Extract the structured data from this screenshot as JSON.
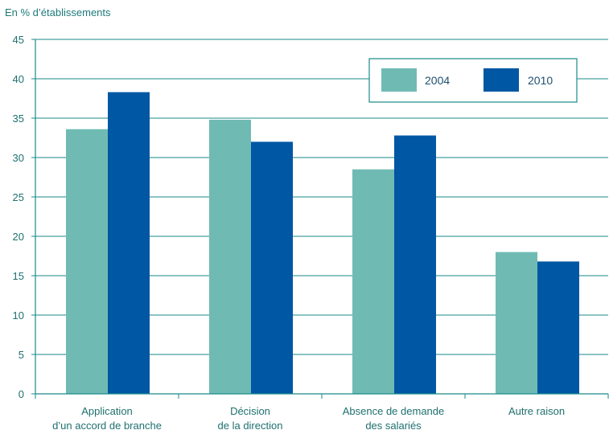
{
  "chart_data": {
    "type": "bar",
    "ylabel": "En % d’établissements",
    "ylim": [
      0,
      45
    ],
    "yticks": [
      0,
      5,
      10,
      15,
      20,
      25,
      30,
      35,
      40,
      45
    ],
    "grid": true,
    "legend_position": "top-right",
    "categories": [
      [
        "Application",
        "d’un accord de branche"
      ],
      [
        "Décision",
        "de la direction"
      ],
      [
        "Absence de demande",
        "des salariés"
      ],
      [
        "Autre raison"
      ]
    ],
    "series": [
      {
        "name": "2004",
        "color": "#6fbbb4",
        "values": [
          33.6,
          34.8,
          28.5,
          18.0
        ]
      },
      {
        "name": "2010",
        "color": "#0057a3",
        "values": [
          38.3,
          32.0,
          32.8,
          16.8
        ]
      }
    ],
    "axis_color": "#1a8a8a"
  }
}
